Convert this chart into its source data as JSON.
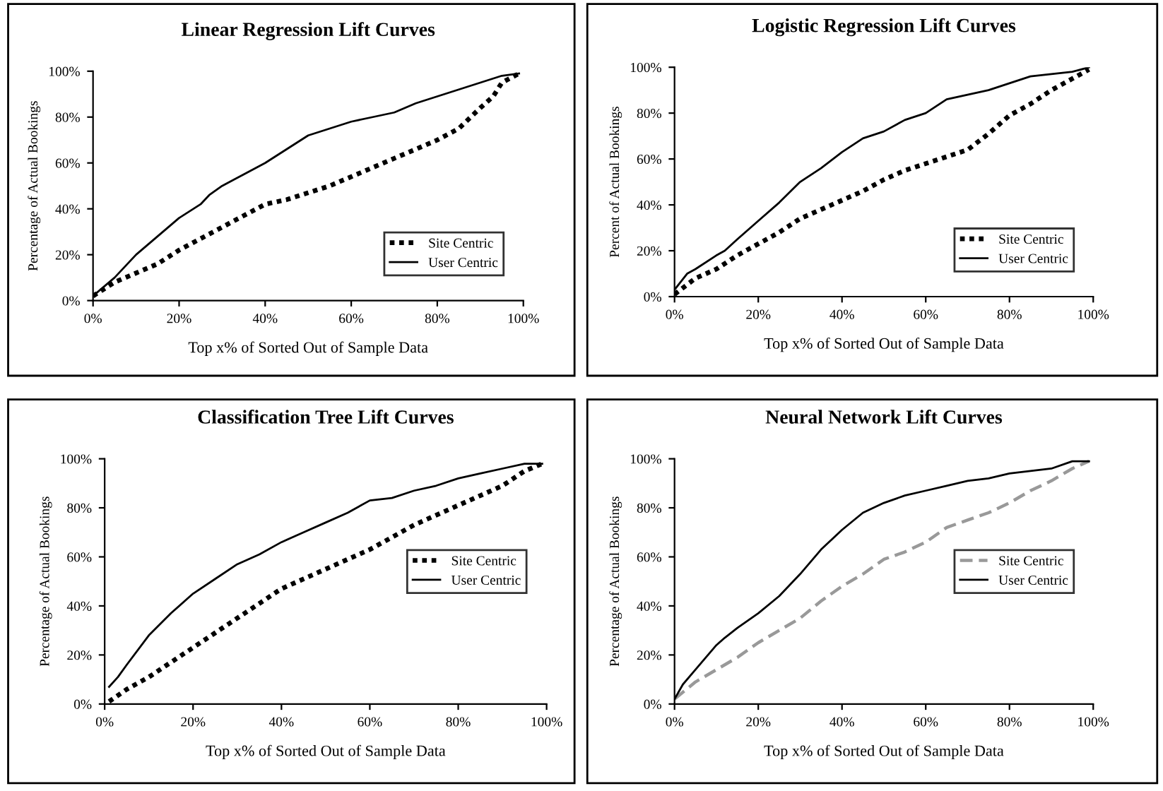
{
  "chart_data": [
    {
      "type": "line",
      "title": "Linear Regression Lift Curves",
      "xlabel": "Top x% of Sorted Out of Sample Data",
      "ylabel": "Percentage of Actual Bookings",
      "xlim": [
        0,
        100
      ],
      "ylim": [
        0,
        100
      ],
      "xticks": [
        {
          "value": 0,
          "label": "0%"
        },
        {
          "value": 20,
          "label": "20%"
        },
        {
          "value": 40,
          "label": "40%"
        },
        {
          "value": 60,
          "label": "60%"
        },
        {
          "value": 80,
          "label": "80%"
        },
        {
          "value": 100,
          "label": "100%"
        }
      ],
      "yticks": [
        {
          "value": 0,
          "label": "0%"
        },
        {
          "value": 20,
          "label": "20%"
        },
        {
          "value": 40,
          "label": "40%"
        },
        {
          "value": 60,
          "label": "60%"
        },
        {
          "value": 80,
          "label": "80%"
        },
        {
          "value": 100,
          "label": "100%"
        }
      ],
      "legend": "lower right",
      "marker": "none",
      "series": [
        {
          "name": "Site Centric",
          "color": "#000000",
          "line_style": "dotted",
          "x": [
            0,
            5,
            10,
            15,
            20,
            25,
            30,
            35,
            40,
            45,
            50,
            55,
            60,
            65,
            70,
            75,
            80,
            85,
            90,
            93,
            95,
            99
          ],
          "values": [
            2,
            8,
            12,
            16,
            22,
            27,
            32,
            37,
            42,
            44,
            47,
            50,
            54,
            58,
            62,
            66,
            70,
            75,
            84,
            89,
            95,
            99
          ]
        },
        {
          "name": "User Centric",
          "color": "#000000",
          "line_style": "solid",
          "x": [
            0,
            5,
            10,
            15,
            20,
            25,
            27,
            30,
            35,
            40,
            45,
            50,
            55,
            60,
            65,
            70,
            75,
            80,
            85,
            90,
            95,
            99
          ],
          "values": [
            2,
            10,
            20,
            28,
            36,
            42,
            46,
            50,
            55,
            60,
            66,
            72,
            75,
            78,
            80,
            82,
            86,
            89,
            92,
            95,
            98,
            99
          ]
        }
      ]
    },
    {
      "type": "line",
      "title": "Logistic Regression Lift Curves",
      "xlabel": "Top x% of Sorted Out of Sample Data",
      "ylabel": "Percent of Actual Bookings",
      "xlim": [
        0,
        100
      ],
      "ylim": [
        0,
        100
      ],
      "xticks": [
        {
          "value": 0,
          "label": "0%"
        },
        {
          "value": 20,
          "label": "20%"
        },
        {
          "value": 40,
          "label": "40%"
        },
        {
          "value": 60,
          "label": "60%"
        },
        {
          "value": 80,
          "label": "80%"
        },
        {
          "value": 100,
          "label": "100%"
        }
      ],
      "yticks": [
        {
          "value": 0,
          "label": "0%"
        },
        {
          "value": 20,
          "label": "20%"
        },
        {
          "value": 40,
          "label": "40%"
        },
        {
          "value": 60,
          "label": "60%"
        },
        {
          "value": 80,
          "label": "80%"
        },
        {
          "value": 100,
          "label": "100%"
        }
      ],
      "legend": "lower right",
      "marker": "none",
      "series": [
        {
          "name": "Site Centric",
          "color": "#000000",
          "line_style": "dotted",
          "x": [
            0,
            5,
            10,
            15,
            20,
            25,
            30,
            35,
            40,
            45,
            50,
            55,
            60,
            65,
            70,
            75,
            80,
            85,
            90,
            95,
            99
          ],
          "values": [
            1,
            8,
            12,
            18,
            23,
            28,
            34,
            38,
            42,
            46,
            51,
            55,
            58,
            61,
            64,
            71,
            79,
            84,
            90,
            95,
            99
          ]
        },
        {
          "name": "User Centric",
          "color": "#000000",
          "line_style": "solid",
          "x": [
            0,
            3,
            5,
            10,
            12,
            15,
            20,
            25,
            30,
            35,
            40,
            45,
            50,
            55,
            60,
            65,
            70,
            75,
            80,
            85,
            90,
            95,
            99
          ],
          "values": [
            3,
            10,
            12,
            18,
            20,
            25,
            33,
            41,
            50,
            56,
            63,
            69,
            72,
            77,
            80,
            86,
            88,
            90,
            93,
            96,
            97,
            98,
            100
          ]
        }
      ]
    },
    {
      "type": "line",
      "title": "Classification Tree Lift Curves",
      "xlabel": "Top x% of Sorted Out of Sample Data",
      "ylabel": "Percentage of Actual Bookings",
      "xlim": [
        0,
        100
      ],
      "ylim": [
        0,
        100
      ],
      "xticks": [
        {
          "value": 0,
          "label": "0%"
        },
        {
          "value": 20,
          "label": "20%"
        },
        {
          "value": 40,
          "label": "40%"
        },
        {
          "value": 60,
          "label": "60%"
        },
        {
          "value": 80,
          "label": "80%"
        },
        {
          "value": 100,
          "label": "100%"
        }
      ],
      "yticks": [
        {
          "value": 0,
          "label": "0%"
        },
        {
          "value": 20,
          "label": "20%"
        },
        {
          "value": 40,
          "label": "40%"
        },
        {
          "value": 60,
          "label": "60%"
        },
        {
          "value": 80,
          "label": "80%"
        },
        {
          "value": 100,
          "label": "100%"
        }
      ],
      "legend": "center right",
      "marker": "none",
      "series": [
        {
          "name": "Site Centric",
          "color": "#000000",
          "line_style": "dotted",
          "x": [
            1,
            5,
            10,
            15,
            20,
            25,
            30,
            35,
            40,
            45,
            50,
            55,
            60,
            65,
            70,
            75,
            80,
            85,
            90,
            95,
            99
          ],
          "values": [
            1,
            6,
            11,
            17,
            23,
            29,
            35,
            41,
            47,
            51,
            55,
            59,
            63,
            68,
            73,
            77,
            81,
            85,
            89,
            95,
            98
          ]
        },
        {
          "name": "User Centric",
          "color": "#000000",
          "line_style": "solid",
          "x": [
            1,
            3,
            5,
            10,
            15,
            20,
            25,
            30,
            35,
            40,
            45,
            50,
            55,
            60,
            65,
            70,
            75,
            80,
            85,
            90,
            95,
            99
          ],
          "values": [
            7,
            11,
            16,
            28,
            37,
            45,
            51,
            57,
            61,
            66,
            70,
            74,
            78,
            83,
            84,
            87,
            89,
            92,
            94,
            96,
            98,
            98
          ]
        }
      ]
    },
    {
      "type": "line",
      "title": "Neural Network Lift Curves",
      "xlabel": "Top x% of Sorted Out of Sample Data",
      "ylabel": "Percentage of Actual Bookings",
      "xlim": [
        0,
        100
      ],
      "ylim": [
        0,
        100
      ],
      "xticks": [
        {
          "value": 0,
          "label": "0%"
        },
        {
          "value": 20,
          "label": "20%"
        },
        {
          "value": 40,
          "label": "40%"
        },
        {
          "value": 60,
          "label": "60%"
        },
        {
          "value": 80,
          "label": "80%"
        },
        {
          "value": 100,
          "label": "100%"
        }
      ],
      "yticks": [
        {
          "value": 0,
          "label": "0%"
        },
        {
          "value": 20,
          "label": "20%"
        },
        {
          "value": 40,
          "label": "40%"
        },
        {
          "value": 60,
          "label": "60%"
        },
        {
          "value": 80,
          "label": "80%"
        },
        {
          "value": 100,
          "label": "100%"
        }
      ],
      "legend": "center right",
      "marker": "none",
      "series": [
        {
          "name": "Site Centric",
          "color": "#999999",
          "line_style": "dashed",
          "x": [
            0,
            5,
            10,
            15,
            20,
            25,
            30,
            35,
            40,
            45,
            50,
            55,
            60,
            65,
            70,
            75,
            80,
            85,
            90,
            95,
            99
          ],
          "values": [
            2,
            9,
            14,
            19,
            25,
            30,
            35,
            42,
            48,
            53,
            59,
            62,
            66,
            72,
            75,
            78,
            82,
            87,
            91,
            96,
            99
          ]
        },
        {
          "name": "User Centric",
          "color": "#000000",
          "line_style": "solid",
          "x": [
            0,
            2,
            5,
            10,
            12,
            15,
            20,
            25,
            30,
            35,
            40,
            45,
            50,
            55,
            60,
            65,
            70,
            75,
            80,
            85,
            90,
            95,
            99
          ],
          "values": [
            2,
            8,
            14,
            24,
            27,
            31,
            37,
            44,
            53,
            63,
            71,
            78,
            82,
            85,
            87,
            89,
            91,
            92,
            94,
            95,
            96,
            99,
            99
          ]
        }
      ]
    }
  ]
}
